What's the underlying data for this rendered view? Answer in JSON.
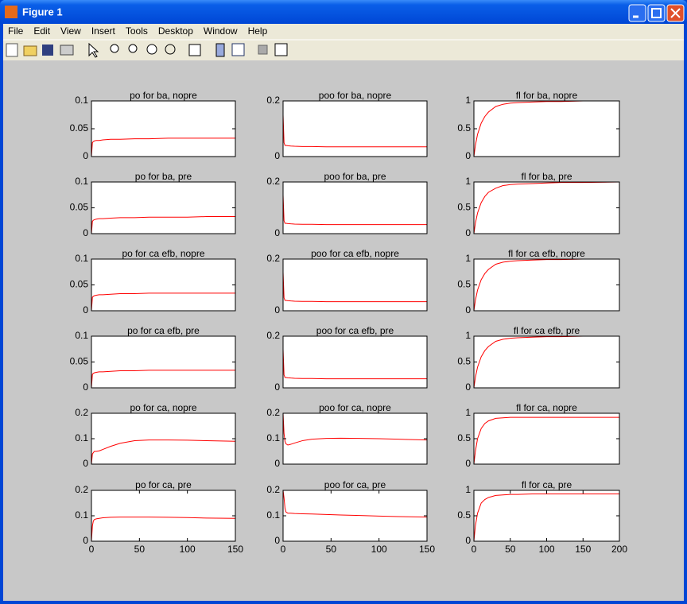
{
  "window": {
    "title": "Figure 1",
    "menu": [
      "File",
      "Edit",
      "View",
      "Insert",
      "Tools",
      "Desktop",
      "Window",
      "Help"
    ]
  },
  "chart_data": [
    {
      "type": "line",
      "title": "po for ba, nopre",
      "xlim": [
        0,
        150
      ],
      "ylim": [
        0,
        0.1
      ],
      "yticks": [
        0,
        0.05,
        0.1
      ],
      "series": [
        {
          "color": "#ff0000",
          "x": [
            0,
            1,
            2,
            3,
            5,
            8,
            12,
            20,
            30,
            45,
            60,
            80,
            100,
            120,
            150
          ],
          "values": [
            0,
            0.025,
            0.027,
            0.028,
            0.029,
            0.029,
            0.03,
            0.031,
            0.031,
            0.032,
            0.032,
            0.033,
            0.033,
            0.033,
            0.033
          ]
        }
      ]
    },
    {
      "type": "line",
      "title": "poo for ba, nopre",
      "xlim": [
        0,
        150
      ],
      "ylim": [
        0,
        0.2
      ],
      "yticks": [
        0,
        0.2
      ],
      "series": [
        {
          "color": "#ff0000",
          "x": [
            0,
            1,
            2,
            3,
            5,
            8,
            12,
            20,
            30,
            45,
            60,
            80,
            100,
            120,
            150
          ],
          "values": [
            0.15,
            0.05,
            0.04,
            0.04,
            0.039,
            0.038,
            0.037,
            0.036,
            0.036,
            0.035,
            0.035,
            0.035,
            0.035,
            0.035,
            0.035
          ]
        }
      ]
    },
    {
      "type": "line",
      "title": "fl for ba, nopre",
      "xlim": [
        0,
        200
      ],
      "ylim": [
        0,
        1
      ],
      "yticks": [
        0,
        0.5,
        1
      ],
      "series": [
        {
          "color": "#ff0000",
          "x": [
            0,
            2,
            5,
            10,
            15,
            20,
            30,
            40,
            50,
            60,
            80,
            100,
            120,
            150,
            200
          ],
          "values": [
            0,
            0.2,
            0.4,
            0.6,
            0.72,
            0.8,
            0.9,
            0.94,
            0.96,
            0.97,
            0.98,
            0.99,
            0.99,
            1,
            1
          ]
        }
      ]
    },
    {
      "type": "line",
      "title": "po for ba, pre",
      "xlim": [
        0,
        150
      ],
      "ylim": [
        0,
        0.1
      ],
      "yticks": [
        0,
        0.05,
        0.1
      ],
      "series": [
        {
          "color": "#ff0000",
          "x": [
            0,
            1,
            2,
            3,
            5,
            8,
            12,
            20,
            30,
            45,
            60,
            80,
            100,
            120,
            150
          ],
          "values": [
            0,
            0.024,
            0.026,
            0.027,
            0.028,
            0.029,
            0.029,
            0.03,
            0.031,
            0.031,
            0.032,
            0.032,
            0.032,
            0.033,
            0.033
          ]
        }
      ]
    },
    {
      "type": "line",
      "title": "poo for ba, pre",
      "xlim": [
        0,
        150
      ],
      "ylim": [
        0,
        0.2
      ],
      "yticks": [
        0,
        0.2
      ],
      "series": [
        {
          "color": "#ff0000",
          "x": [
            0,
            1,
            2,
            3,
            5,
            8,
            12,
            20,
            30,
            45,
            60,
            80,
            100,
            120,
            150
          ],
          "values": [
            0.15,
            0.05,
            0.04,
            0.04,
            0.039,
            0.038,
            0.037,
            0.036,
            0.036,
            0.035,
            0.035,
            0.035,
            0.035,
            0.035,
            0.035
          ]
        }
      ]
    },
    {
      "type": "line",
      "title": "fl for ba, pre",
      "xlim": [
        0,
        200
      ],
      "ylim": [
        0,
        1
      ],
      "yticks": [
        0,
        0.5,
        1
      ],
      "series": [
        {
          "color": "#ff0000",
          "x": [
            0,
            2,
            5,
            10,
            15,
            20,
            30,
            40,
            50,
            60,
            80,
            100,
            120,
            150,
            200
          ],
          "values": [
            0,
            0.2,
            0.4,
            0.6,
            0.72,
            0.8,
            0.88,
            0.93,
            0.95,
            0.96,
            0.97,
            0.98,
            0.99,
            0.99,
            1
          ]
        }
      ]
    },
    {
      "type": "line",
      "title": "po for ca efb, nopre",
      "xlim": [
        0,
        150
      ],
      "ylim": [
        0,
        0.1
      ],
      "yticks": [
        0,
        0.05,
        0.1
      ],
      "series": [
        {
          "color": "#ff0000",
          "x": [
            0,
            1,
            2,
            3,
            5,
            8,
            12,
            20,
            30,
            45,
            60,
            80,
            100,
            120,
            150
          ],
          "values": [
            0,
            0.026,
            0.028,
            0.029,
            0.03,
            0.031,
            0.031,
            0.032,
            0.033,
            0.033,
            0.034,
            0.034,
            0.034,
            0.034,
            0.034
          ]
        }
      ]
    },
    {
      "type": "line",
      "title": "poo for ca efb, nopre",
      "xlim": [
        0,
        150
      ],
      "ylim": [
        0,
        0.2
      ],
      "yticks": [
        0,
        0.2
      ],
      "series": [
        {
          "color": "#ff0000",
          "x": [
            0,
            1,
            2,
            3,
            5,
            8,
            12,
            20,
            30,
            45,
            60,
            80,
            100,
            120,
            150
          ],
          "values": [
            0.15,
            0.05,
            0.04,
            0.04,
            0.039,
            0.038,
            0.037,
            0.036,
            0.036,
            0.035,
            0.035,
            0.035,
            0.035,
            0.035,
            0.035
          ]
        }
      ]
    },
    {
      "type": "line",
      "title": "fl for ca efb, nopre",
      "xlim": [
        0,
        200
      ],
      "ylim": [
        0,
        1
      ],
      "yticks": [
        0,
        0.5,
        1
      ],
      "series": [
        {
          "color": "#ff0000",
          "x": [
            0,
            2,
            5,
            10,
            15,
            20,
            30,
            40,
            50,
            60,
            80,
            100,
            120,
            150,
            200
          ],
          "values": [
            0,
            0.2,
            0.4,
            0.6,
            0.72,
            0.8,
            0.9,
            0.94,
            0.96,
            0.97,
            0.98,
            0.99,
            0.99,
            1,
            1
          ]
        }
      ]
    },
    {
      "type": "line",
      "title": "po for ca efb, pre",
      "xlim": [
        0,
        150
      ],
      "ylim": [
        0,
        0.1
      ],
      "yticks": [
        0,
        0.05,
        0.1
      ],
      "series": [
        {
          "color": "#ff0000",
          "x": [
            0,
            1,
            2,
            3,
            5,
            8,
            12,
            20,
            30,
            45,
            60,
            80,
            100,
            120,
            150
          ],
          "values": [
            0,
            0.026,
            0.028,
            0.029,
            0.03,
            0.031,
            0.031,
            0.032,
            0.033,
            0.033,
            0.034,
            0.034,
            0.034,
            0.034,
            0.034
          ]
        }
      ]
    },
    {
      "type": "line",
      "title": "poo for ca efb, pre",
      "xlim": [
        0,
        150
      ],
      "ylim": [
        0,
        0.2
      ],
      "yticks": [
        0,
        0.2
      ],
      "series": [
        {
          "color": "#ff0000",
          "x": [
            0,
            1,
            2,
            3,
            5,
            8,
            12,
            20,
            30,
            45,
            60,
            80,
            100,
            120,
            150
          ],
          "values": [
            0.15,
            0.05,
            0.04,
            0.04,
            0.039,
            0.038,
            0.037,
            0.036,
            0.036,
            0.035,
            0.035,
            0.035,
            0.035,
            0.035,
            0.035
          ]
        }
      ]
    },
    {
      "type": "line",
      "title": "fl for ca efb, pre",
      "xlim": [
        0,
        200
      ],
      "ylim": [
        0,
        1
      ],
      "yticks": [
        0,
        0.5,
        1
      ],
      "series": [
        {
          "color": "#ff0000",
          "x": [
            0,
            2,
            5,
            10,
            15,
            20,
            30,
            40,
            50,
            60,
            80,
            100,
            120,
            150,
            200
          ],
          "values": [
            0,
            0.2,
            0.4,
            0.6,
            0.72,
            0.8,
            0.9,
            0.94,
            0.96,
            0.97,
            0.98,
            0.99,
            0.99,
            1,
            1
          ]
        }
      ]
    },
    {
      "type": "line",
      "title": "po for ca, nopre",
      "xlim": [
        0,
        150
      ],
      "ylim": [
        0,
        0.2
      ],
      "yticks": [
        0,
        0.1,
        0.2
      ],
      "series": [
        {
          "color": "#ff0000",
          "x": [
            0,
            1,
            2,
            3,
            5,
            8,
            12,
            20,
            30,
            45,
            60,
            80,
            100,
            120,
            150
          ],
          "values": [
            0,
            0.04,
            0.045,
            0.05,
            0.05,
            0.052,
            0.058,
            0.07,
            0.082,
            0.092,
            0.095,
            0.095,
            0.094,
            0.092,
            0.09
          ]
        }
      ]
    },
    {
      "type": "line",
      "title": "poo for ca, nopre",
      "xlim": [
        0,
        150
      ],
      "ylim": [
        0,
        0.2
      ],
      "yticks": [
        0,
        0.1,
        0.2
      ],
      "series": [
        {
          "color": "#ff0000",
          "x": [
            0,
            1,
            2,
            3,
            5,
            8,
            12,
            20,
            30,
            45,
            60,
            80,
            100,
            120,
            150
          ],
          "values": [
            0.2,
            0.12,
            0.09,
            0.08,
            0.075,
            0.078,
            0.083,
            0.092,
            0.098,
            0.101,
            0.102,
            0.101,
            0.1,
            0.098,
            0.095
          ]
        }
      ]
    },
    {
      "type": "line",
      "title": "fl for ca, nopre",
      "xlim": [
        0,
        200
      ],
      "ylim": [
        0,
        1
      ],
      "yticks": [
        0,
        0.5,
        1
      ],
      "series": [
        {
          "color": "#ff0000",
          "x": [
            0,
            2,
            5,
            10,
            15,
            20,
            30,
            40,
            50,
            60,
            80,
            100,
            120,
            150,
            200
          ],
          "values": [
            0,
            0.25,
            0.5,
            0.7,
            0.8,
            0.85,
            0.9,
            0.91,
            0.92,
            0.92,
            0.92,
            0.92,
            0.92,
            0.92,
            0.92
          ]
        }
      ]
    },
    {
      "type": "line",
      "title": "po for ca, pre",
      "xlim": [
        0,
        150
      ],
      "ylim": [
        0,
        0.2
      ],
      "yticks": [
        0,
        0.1,
        0.2
      ],
      "xticks": [
        0,
        50,
        100,
        150
      ],
      "series": [
        {
          "color": "#ff0000",
          "x": [
            0,
            1,
            2,
            3,
            5,
            8,
            12,
            20,
            30,
            45,
            60,
            80,
            100,
            120,
            150
          ],
          "values": [
            0,
            0.06,
            0.08,
            0.085,
            0.088,
            0.09,
            0.092,
            0.094,
            0.095,
            0.095,
            0.095,
            0.094,
            0.093,
            0.091,
            0.09
          ]
        }
      ]
    },
    {
      "type": "line",
      "title": "poo for ca, pre",
      "xlim": [
        0,
        150
      ],
      "ylim": [
        0,
        0.2
      ],
      "yticks": [
        0,
        0.1,
        0.2
      ],
      "xticks": [
        0,
        50,
        100,
        150
      ],
      "series": [
        {
          "color": "#ff0000",
          "x": [
            0,
            1,
            2,
            3,
            5,
            8,
            12,
            20,
            30,
            45,
            60,
            80,
            100,
            120,
            150
          ],
          "values": [
            0.2,
            0.17,
            0.13,
            0.115,
            0.11,
            0.11,
            0.109,
            0.108,
            0.107,
            0.105,
            0.103,
            0.101,
            0.099,
            0.097,
            0.095
          ]
        }
      ]
    },
    {
      "type": "line",
      "title": "fl for ca, pre",
      "xlim": [
        0,
        200
      ],
      "ylim": [
        0,
        1
      ],
      "yticks": [
        0,
        0.5,
        1
      ],
      "xticks": [
        0,
        50,
        100,
        150,
        200
      ],
      "series": [
        {
          "color": "#ff0000",
          "x": [
            0,
            2,
            5,
            10,
            15,
            20,
            30,
            40,
            50,
            60,
            80,
            100,
            120,
            150,
            200
          ],
          "values": [
            0,
            0.3,
            0.55,
            0.75,
            0.82,
            0.86,
            0.9,
            0.91,
            0.92,
            0.92,
            0.93,
            0.93,
            0.93,
            0.93,
            0.93
          ]
        }
      ]
    }
  ]
}
